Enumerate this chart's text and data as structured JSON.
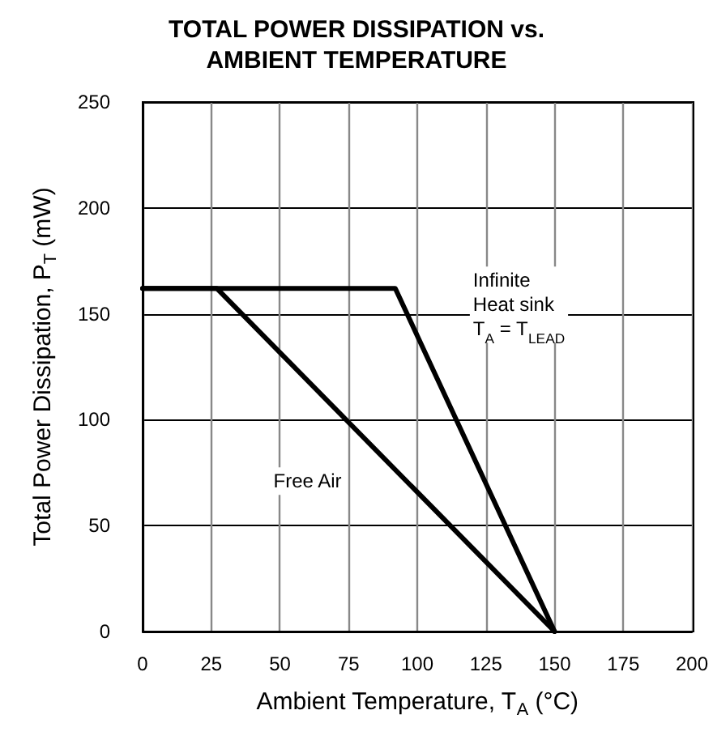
{
  "chart_data": {
    "type": "line",
    "title": "TOTAL POWER DISSIPATION vs.\nAMBIENT TEMPERATURE",
    "xlabel": "Ambient Temperature, T$_{A}$ (°C)",
    "ylabel": "Total Power Dissipation, P$_{T}$ (mW)",
    "xlim": [
      0,
      200
    ],
    "xticks": [
      0,
      25,
      50,
      75,
      100,
      125,
      150,
      175,
      200
    ],
    "ylim": [
      0,
      250
    ],
    "yticks": [
      0,
      50,
      100,
      150,
      200,
      250
    ],
    "grid": true,
    "marker": "none",
    "line_style": "solid",
    "series": [
      {
        "name": "Free Air",
        "color": "#000000",
        "x": [
          0,
          27,
          150
        ],
        "values": [
          162,
          162,
          0
        ]
      },
      {
        "name": "Infinite\nHeat sink\nT$_{A}$ = T$_{LEAD}$",
        "color": "#000000",
        "x": [
          0,
          92,
          150
        ],
        "values": [
          162,
          162,
          0
        ]
      }
    ]
  }
}
